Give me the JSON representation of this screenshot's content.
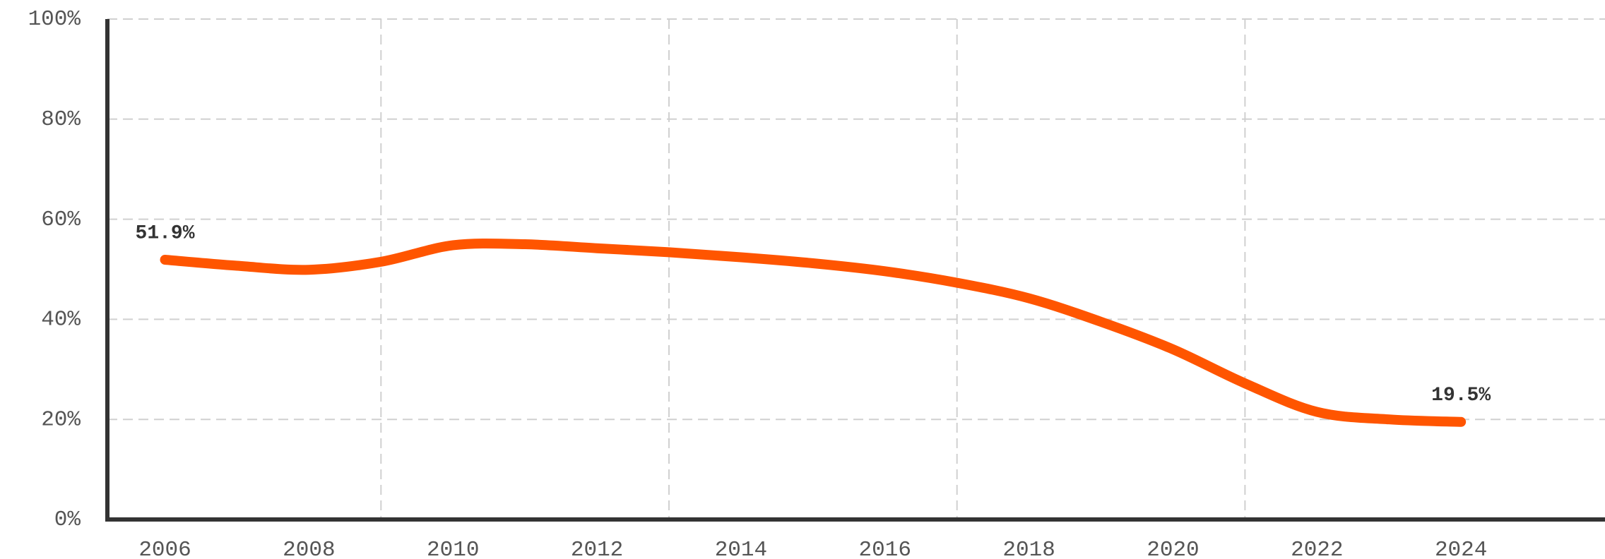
{
  "chart_data": {
    "type": "line",
    "x": [
      2006,
      2007,
      2008,
      2009,
      2010,
      2011,
      2012,
      2013,
      2014,
      2015,
      2016,
      2017,
      2018,
      2019,
      2020,
      2021,
      2022,
      2023,
      2024
    ],
    "series": [
      {
        "color": "#ff5500",
        "values": [
          51.9,
          50.7,
          49.9,
          51.5,
          54.8,
          55.0,
          54.2,
          53.4,
          52.4,
          51.2,
          49.6,
          47.3,
          44.2,
          39.5,
          34.0,
          27.2,
          21.5,
          20.0,
          19.5
        ],
        "value_labels": [
          "51.9%",
          null,
          null,
          null,
          null,
          null,
          null,
          null,
          null,
          null,
          null,
          null,
          null,
          null,
          null,
          null,
          null,
          null,
          "19.5%"
        ]
      }
    ],
    "xlim": [
      2005.2,
      2026
    ],
    "xticks": [
      2006,
      2008,
      2010,
      2012,
      2014,
      2016,
      2018,
      2020,
      2022,
      2024
    ],
    "xgrid": [
      2009,
      2013,
      2017,
      2021
    ],
    "ylim": [
      0,
      100
    ],
    "yticks": [
      {
        "value": 0,
        "label": "0%"
      },
      {
        "value": 20,
        "label": "20%"
      },
      {
        "value": 40,
        "label": "40%"
      },
      {
        "value": 60,
        "label": "60%"
      },
      {
        "value": 80,
        "label": "80%"
      },
      {
        "value": 100,
        "label": "100%"
      }
    ],
    "grid": true
  }
}
